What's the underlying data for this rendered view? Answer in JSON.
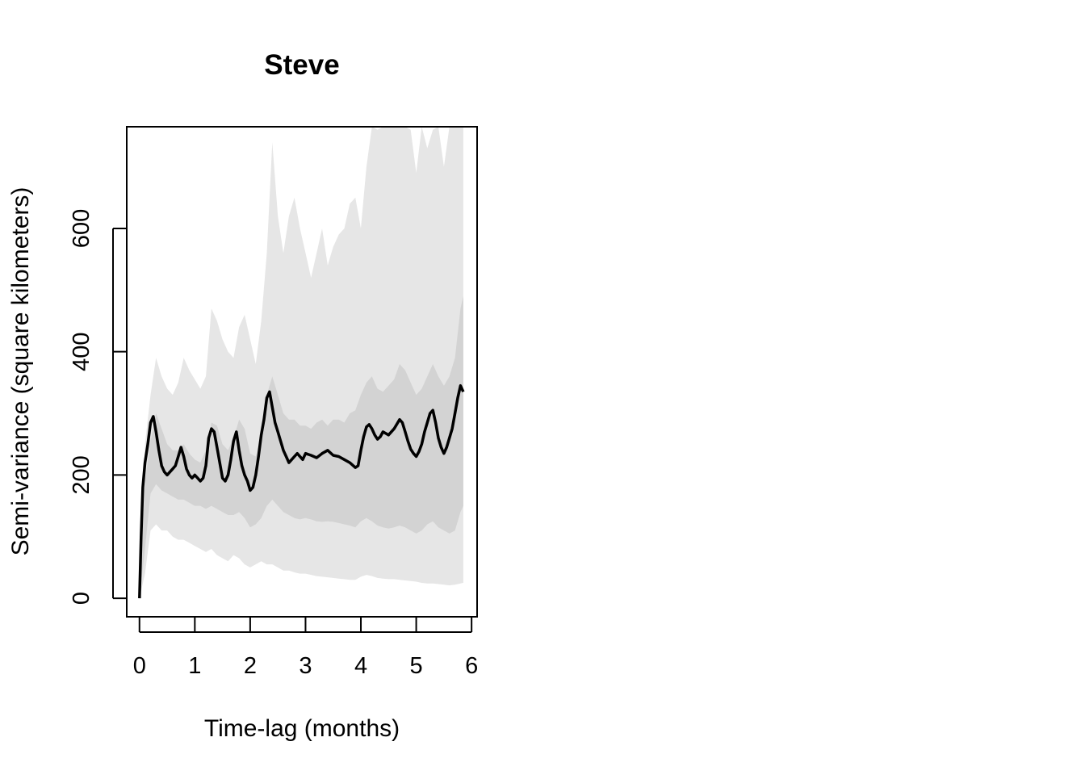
{
  "chart_data": {
    "type": "line",
    "title": "Steve",
    "xlabel": "Time-lag (months)",
    "ylabel": "Semi-variance (square kilometers)",
    "xlim": [
      -0.23,
      6.1
    ],
    "ylim": [
      -30,
      765
    ],
    "xticks": [
      0,
      1,
      2,
      3,
      4,
      5,
      6
    ],
    "yticks": [
      0,
      200,
      400,
      600
    ],
    "grid": false,
    "legend": "none",
    "series": [
      {
        "name": "semi-variance",
        "color": "#000000",
        "x": [
          0,
          0.03,
          0.06,
          0.1,
          0.15,
          0.2,
          0.25,
          0.3,
          0.35,
          0.4,
          0.45,
          0.5,
          0.55,
          0.6,
          0.65,
          0.7,
          0.75,
          0.8,
          0.85,
          0.9,
          0.95,
          1.0,
          1.05,
          1.1,
          1.15,
          1.2,
          1.25,
          1.3,
          1.35,
          1.4,
          1.45,
          1.5,
          1.55,
          1.6,
          1.65,
          1.7,
          1.75,
          1.8,
          1.85,
          1.9,
          1.95,
          2.0,
          2.05,
          2.1,
          2.15,
          2.2,
          2.25,
          2.3,
          2.35,
          2.4,
          2.45,
          2.5,
          2.55,
          2.6,
          2.65,
          2.7,
          2.75,
          2.8,
          2.85,
          2.9,
          2.95,
          3.0,
          3.1,
          3.2,
          3.3,
          3.4,
          3.5,
          3.6,
          3.7,
          3.8,
          3.9,
          3.95,
          4.0,
          4.05,
          4.1,
          4.15,
          4.2,
          4.25,
          4.3,
          4.35,
          4.4,
          4.5,
          4.6,
          4.7,
          4.75,
          4.8,
          4.85,
          4.9,
          4.95,
          5.0,
          5.05,
          5.1,
          5.15,
          5.2,
          5.25,
          5.3,
          5.35,
          5.4,
          5.45,
          5.5,
          5.55,
          5.6,
          5.65,
          5.7,
          5.75,
          5.8,
          5.85
        ],
        "y": [
          0,
          100,
          180,
          220,
          250,
          285,
          295,
          270,
          240,
          215,
          205,
          200,
          205,
          210,
          215,
          230,
          245,
          230,
          210,
          200,
          195,
          200,
          195,
          190,
          195,
          215,
          260,
          275,
          270,
          245,
          220,
          195,
          190,
          200,
          225,
          255,
          270,
          240,
          215,
          200,
          190,
          175,
          180,
          200,
          230,
          265,
          290,
          325,
          335,
          310,
          285,
          270,
          255,
          240,
          230,
          220,
          225,
          230,
          235,
          230,
          225,
          235,
          232,
          228,
          235,
          240,
          232,
          230,
          225,
          220,
          212,
          215,
          240,
          262,
          278,
          282,
          275,
          265,
          258,
          262,
          270,
          265,
          275,
          290,
          285,
          270,
          255,
          242,
          235,
          230,
          238,
          250,
          270,
          285,
          300,
          305,
          285,
          260,
          245,
          235,
          245,
          260,
          275,
          300,
          325,
          345,
          335
        ]
      }
    ],
    "bands": [
      {
        "name": "outer-interval",
        "color": "#e6e6e6",
        "x": [
          0,
          0.1,
          0.2,
          0.3,
          0.4,
          0.5,
          0.6,
          0.7,
          0.8,
          0.9,
          1.0,
          1.1,
          1.2,
          1.3,
          1.4,
          1.5,
          1.6,
          1.7,
          1.8,
          1.9,
          2.0,
          2.1,
          2.2,
          2.3,
          2.4,
          2.5,
          2.6,
          2.7,
          2.8,
          2.9,
          3.0,
          3.1,
          3.2,
          3.3,
          3.4,
          3.5,
          3.6,
          3.7,
          3.8,
          3.9,
          4.0,
          4.1,
          4.2,
          4.3,
          4.4,
          4.5,
          4.6,
          4.7,
          4.8,
          4.9,
          5.0,
          5.1,
          5.2,
          5.3,
          5.4,
          5.5,
          5.6,
          5.7,
          5.8,
          5.85
        ],
        "lower": [
          0,
          40,
          110,
          120,
          110,
          110,
          100,
          95,
          95,
          90,
          85,
          80,
          75,
          80,
          70,
          65,
          60,
          70,
          65,
          55,
          50,
          55,
          60,
          55,
          55,
          50,
          45,
          45,
          42,
          40,
          40,
          38,
          36,
          35,
          34,
          33,
          32,
          31,
          30,
          30,
          35,
          38,
          36,
          33,
          32,
          31,
          31,
          30,
          29,
          28,
          27,
          25,
          24,
          24,
          23,
          22,
          21,
          22,
          24,
          25
        ],
        "upper": [
          0,
          250,
          330,
          390,
          360,
          340,
          330,
          350,
          390,
          370,
          355,
          340,
          360,
          470,
          450,
          420,
          400,
          390,
          440,
          460,
          420,
          380,
          450,
          560,
          740,
          620,
          560,
          620,
          650,
          600,
          560,
          520,
          560,
          600,
          540,
          570,
          590,
          600,
          640,
          650,
          600,
          700,
          770,
          760,
          770,
          770,
          765,
          770,
          770,
          760,
          690,
          770,
          730,
          760,
          770,
          700,
          770,
          770,
          770,
          770
        ]
      },
      {
        "name": "inner-interval",
        "color": "#d3d3d3",
        "x": [
          0,
          0.1,
          0.2,
          0.3,
          0.4,
          0.5,
          0.6,
          0.7,
          0.8,
          0.9,
          1.0,
          1.1,
          1.2,
          1.3,
          1.4,
          1.5,
          1.6,
          1.7,
          1.8,
          1.9,
          2.0,
          2.1,
          2.2,
          2.3,
          2.4,
          2.5,
          2.6,
          2.7,
          2.8,
          2.9,
          3.0,
          3.1,
          3.2,
          3.3,
          3.4,
          3.5,
          3.6,
          3.7,
          3.8,
          3.9,
          4.0,
          4.1,
          4.2,
          4.3,
          4.4,
          4.5,
          4.6,
          4.7,
          4.8,
          4.9,
          5.0,
          5.1,
          5.2,
          5.3,
          5.4,
          5.5,
          5.6,
          5.7,
          5.8,
          5.85
        ],
        "lower": [
          0,
          80,
          170,
          185,
          175,
          170,
          165,
          160,
          160,
          155,
          150,
          150,
          145,
          150,
          145,
          140,
          135,
          135,
          140,
          130,
          115,
          120,
          130,
          150,
          160,
          150,
          140,
          135,
          130,
          128,
          130,
          128,
          125,
          124,
          125,
          124,
          122,
          120,
          118,
          115,
          125,
          130,
          125,
          118,
          115,
          113,
          115,
          118,
          115,
          110,
          105,
          110,
          120,
          125,
          115,
          110,
          105,
          110,
          140,
          150
        ],
        "upper": [
          0,
          190,
          255,
          300,
          275,
          250,
          240,
          240,
          250,
          235,
          225,
          220,
          240,
          285,
          280,
          250,
          240,
          260,
          290,
          275,
          235,
          230,
          270,
          330,
          360,
          330,
          300,
          290,
          290,
          280,
          280,
          275,
          285,
          290,
          280,
          290,
          290,
          285,
          300,
          305,
          330,
          350,
          360,
          340,
          335,
          345,
          355,
          380,
          370,
          350,
          330,
          340,
          360,
          380,
          360,
          345,
          360,
          390,
          470,
          490
        ]
      }
    ]
  }
}
